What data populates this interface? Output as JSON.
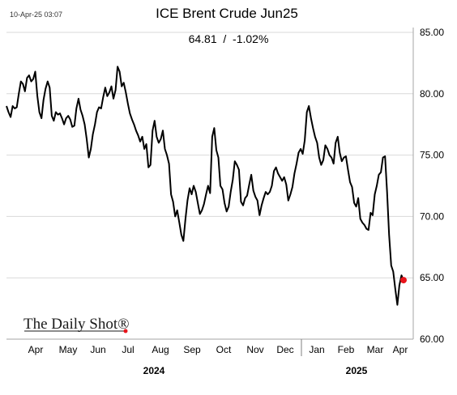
{
  "chart_data": {
    "type": "line",
    "title": "ICE Brent Crude Jun25",
    "subtitle": "64.81  /  -1.02%",
    "timestamp": "10-Apr-25 03:07",
    "watermark": "The Daily Shot®",
    "xlabel": "",
    "ylabel": "",
    "ylim": [
      60,
      85
    ],
    "yticks": [
      "60.00",
      "65.00",
      "70.00",
      "75.00",
      "80.00",
      "85.00"
    ],
    "y_grid": true,
    "x_month_labels": [
      "Apr",
      "May",
      "Jun",
      "Jul",
      "Aug",
      "Sep",
      "Oct",
      "Nov",
      "Dec",
      "Jan",
      "Feb",
      "Mar",
      "Apr"
    ],
    "x_year_labels": [
      "2024",
      "2025"
    ],
    "last_value": 64.81,
    "line_color": "#000000",
    "marker_color": "#e8141b",
    "grid_color": "#d9d9d9",
    "series": [
      {
        "values": [
          79.0,
          78.5,
          78.1,
          79.0,
          78.8,
          78.9,
          80.0,
          81.0,
          80.8,
          80.2,
          81.3,
          81.5,
          81.0,
          81.2,
          81.8,
          79.8,
          78.5,
          78.0,
          79.5,
          80.4,
          81.0,
          80.5,
          78.2,
          77.8,
          78.5,
          78.3,
          78.4,
          78.0,
          77.5,
          78.0,
          78.2,
          77.9,
          77.3,
          77.4,
          78.8,
          79.6,
          78.7,
          78.2,
          77.5,
          76.3,
          74.8,
          75.5,
          76.7,
          77.5,
          78.5,
          78.9,
          78.8,
          79.7,
          80.5,
          79.8,
          80.1,
          80.6,
          79.6,
          80.3,
          82.2,
          81.8,
          80.6,
          80.9,
          80.1,
          79.2,
          78.4,
          77.9,
          77.5,
          77.0,
          76.6,
          76.1,
          76.5,
          75.5,
          75.9,
          74.0,
          74.2,
          77.0,
          77.8,
          76.5,
          76.0,
          76.3,
          77.0,
          75.5,
          75.0,
          74.3,
          71.8,
          71.2,
          70.0,
          70.5,
          69.5,
          68.5,
          68.0,
          69.8,
          71.3,
          72.3,
          71.8,
          72.5,
          72.0,
          71.1,
          70.2,
          70.5,
          71.0,
          71.8,
          72.5,
          71.9,
          76.5,
          77.2,
          75.4,
          74.8,
          72.5,
          72.2,
          71.1,
          70.4,
          70.8,
          72.0,
          73.0,
          74.5,
          74.2,
          73.8,
          71.2,
          70.9,
          71.5,
          71.7,
          72.6,
          73.4,
          72.1,
          71.6,
          71.3,
          70.1,
          70.9,
          71.5,
          72.0,
          71.8,
          72.0,
          72.5,
          73.7,
          74.0,
          73.5,
          73.2,
          72.9,
          73.2,
          72.6,
          71.3,
          71.8,
          72.4,
          73.5,
          74.3,
          75.2,
          75.5,
          75.1,
          76.2,
          78.5,
          79.0,
          78.0,
          77.2,
          76.5,
          76.0,
          74.8,
          74.2,
          74.6,
          75.8,
          75.5,
          75.0,
          74.8,
          74.3,
          76.0,
          76.5,
          75.2,
          74.5,
          74.8,
          74.9,
          73.8,
          72.8,
          72.4,
          71.1,
          70.8,
          71.5,
          69.8,
          69.5,
          69.3,
          69.0,
          68.9,
          70.3,
          70.1,
          71.8,
          72.5,
          73.4,
          73.6,
          74.8,
          74.9,
          72.0,
          68.5,
          66.0,
          65.5,
          64.1,
          62.8,
          64.4,
          65.2,
          64.81
        ]
      }
    ]
  }
}
